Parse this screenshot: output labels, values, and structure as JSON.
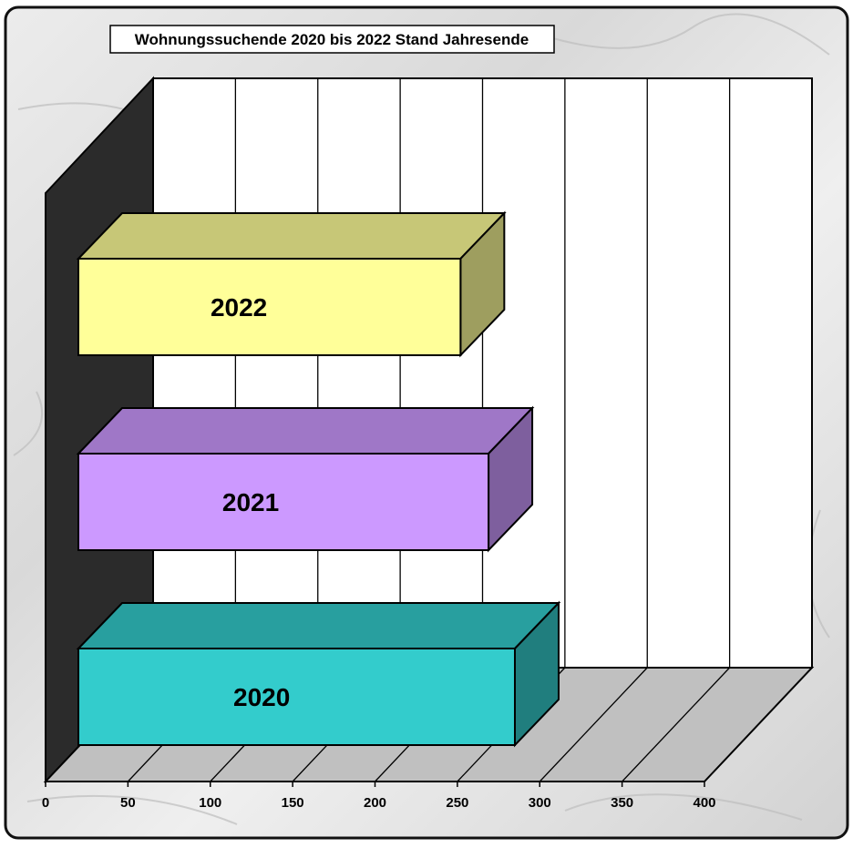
{
  "chart_data": {
    "type": "bar",
    "orientation": "horizontal",
    "style": "3d",
    "title": "Wohnungssuchende 2020 bis 2022 Stand Jahresende",
    "categories": [
      "2022",
      "2021",
      "2020"
    ],
    "values": [
      232,
      249,
      265
    ],
    "xlim": [
      0,
      400
    ],
    "xticks": [
      0,
      50,
      100,
      150,
      200,
      250,
      300,
      350,
      400
    ],
    "xlabel": "",
    "ylabel": "",
    "grid": true,
    "legend": "none",
    "bar_labels": "category names inside bars",
    "colors": {
      "2022": "#ffff99",
      "2021": "#cc99ff",
      "2020": "#33cccc",
      "back_wall": "#ffffff",
      "side_wall": "#2b2b2b",
      "floor": "#c0c0c0",
      "background": "#e6e6e6"
    }
  }
}
